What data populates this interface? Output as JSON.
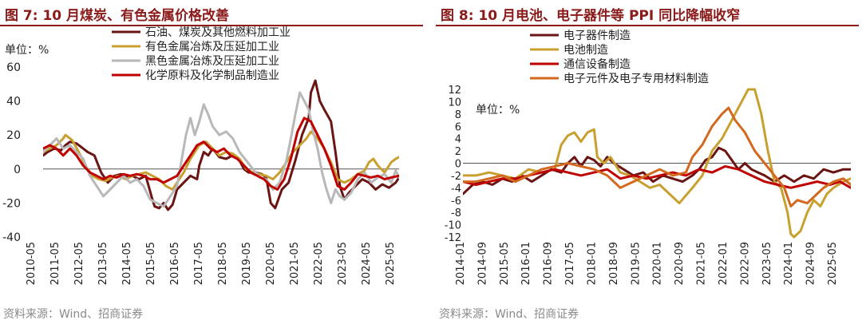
{
  "charts": [
    {
      "figure_label": "图 7:",
      "title": "10 月煤炭、有色金属价格改善",
      "source": "资料来源：Wind、招商证券",
      "chart_data": {
        "type": "line",
        "title": "图 7: 10 月煤炭、有色金属价格改善",
        "unit_label": "单位：%",
        "ylim": [
          -40,
          60
        ],
        "yticks": [
          -40,
          -20,
          0,
          20,
          40,
          60
        ],
        "x_tick_labels": [
          "2010-05",
          "2011-05",
          "2012-05",
          "2013-05",
          "2014-05",
          "2015-05",
          "2016-05",
          "2017-05",
          "2018-05",
          "2019-05",
          "2020-05",
          "2021-05",
          "2022-05",
          "2023-05",
          "2024-05",
          "2025-05"
        ],
        "x_start": 2010.0,
        "x_end": 2025.95,
        "legend_position": "top",
        "series": [
          {
            "name": "石油、煤炭及其他燃料加工业",
            "color": "#6b1414",
            "x": [
              2010.0,
              2010.2,
              2010.5,
              2010.8,
              2011.0,
              2011.2,
              2011.5,
              2011.8,
              2012.0,
              2012.3,
              2012.6,
              2012.9,
              2013.2,
              2013.5,
              2013.8,
              2014.0,
              2014.3,
              2014.6,
              2014.9,
              2015.0,
              2015.2,
              2015.4,
              2015.6,
              2015.8,
              2016.0,
              2016.3,
              2016.6,
              2016.9,
              2017.0,
              2017.2,
              2017.4,
              2017.6,
              2017.9,
              2018.2,
              2018.5,
              2018.8,
              2019.0,
              2019.2,
              2019.5,
              2019.8,
              2020.0,
              2020.2,
              2020.4,
              2020.7,
              2021.0,
              2021.3,
              2021.6,
              2021.9,
              2022.0,
              2022.2,
              2022.4,
              2022.6,
              2022.9,
              2023.1,
              2023.3,
              2023.5,
              2023.7,
              2024.0,
              2024.3,
              2024.6,
              2024.9,
              2025.2,
              2025.5,
              2025.8,
              2025.95
            ],
            "y": [
              8,
              10,
              12,
              11,
              14,
              16,
              15,
              12,
              10,
              8,
              -2,
              -8,
              -4,
              -3,
              -5,
              -4,
              -6,
              -4,
              -18,
              -22,
              -23,
              -20,
              -24,
              -21,
              -12,
              -8,
              -4,
              -6,
              2,
              10,
              8,
              12,
              7,
              6,
              8,
              5,
              0,
              -2,
              -2,
              -3,
              -5,
              -20,
              -23,
              -12,
              -8,
              5,
              20,
              30,
              45,
              52,
              40,
              35,
              28,
              10,
              -10,
              -18,
              -14,
              -10,
              -6,
              -8,
              -12,
              -9,
              -11,
              -8,
              -5
            ]
          },
          {
            "name": "有色金属冶炼及压延加工业",
            "color": "#c8a030",
            "x": [
              2010.0,
              2010.3,
              2010.6,
              2010.9,
              2011.0,
              2011.3,
              2011.6,
              2011.9,
              2012.2,
              2012.5,
              2012.8,
              2013.1,
              2013.4,
              2013.7,
              2014.0,
              2014.3,
              2014.6,
              2014.9,
              2015.2,
              2015.5,
              2015.8,
              2016.0,
              2016.3,
              2016.6,
              2016.9,
              2017.0,
              2017.3,
              2017.6,
              2017.9,
              2018.2,
              2018.5,
              2018.8,
              2019.1,
              2019.4,
              2019.7,
              2020.0,
              2020.3,
              2020.6,
              2020.9,
              2021.2,
              2021.5,
              2021.8,
              2022.0,
              2022.3,
              2022.6,
              2022.9,
              2023.2,
              2023.5,
              2023.8,
              2024.1,
              2024.4,
              2024.6,
              2024.8,
              2025.0,
              2025.3,
              2025.6,
              2025.8,
              2025.95
            ],
            "y": [
              10,
              12,
              14,
              18,
              20,
              17,
              10,
              2,
              -4,
              -6,
              -7,
              -5,
              -4,
              -6,
              -4,
              -3,
              -2,
              -4,
              -6,
              -10,
              -12,
              -8,
              -2,
              6,
              12,
              14,
              16,
              12,
              8,
              10,
              9,
              6,
              0,
              -2,
              -3,
              -4,
              -6,
              -2,
              4,
              10,
              14,
              18,
              22,
              18,
              12,
              4,
              -6,
              -8,
              -6,
              -3,
              -1,
              4,
              6,
              2,
              -2,
              4,
              6,
              7
            ]
          },
          {
            "name": "黑色金属冶炼及压延加工业",
            "color": "#b8b8b8",
            "x": [
              2010.0,
              2010.3,
              2010.6,
              2010.9,
              2011.2,
              2011.5,
              2011.8,
              2012.1,
              2012.4,
              2012.7,
              2013.0,
              2013.3,
              2013.6,
              2013.9,
              2014.2,
              2014.5,
              2014.8,
              2015.1,
              2015.4,
              2015.7,
              2016.0,
              2016.2,
              2016.4,
              2016.6,
              2016.8,
              2017.0,
              2017.2,
              2017.4,
              2017.6,
              2017.9,
              2018.2,
              2018.5,
              2018.8,
              2019.1,
              2019.4,
              2019.7,
              2020.0,
              2020.3,
              2020.6,
              2020.9,
              2021.1,
              2021.3,
              2021.5,
              2021.7,
              2021.9,
              2022.1,
              2022.3,
              2022.5,
              2022.7,
              2022.9,
              2023.1,
              2023.3,
              2023.5,
              2023.8,
              2024.1,
              2024.4,
              2024.7,
              2025.0,
              2025.3,
              2025.6,
              2025.8,
              2025.95
            ],
            "y": [
              10,
              14,
              18,
              12,
              14,
              10,
              6,
              -4,
              -10,
              -16,
              -12,
              -8,
              -4,
              -8,
              -6,
              -10,
              -18,
              -20,
              -22,
              -16,
              -10,
              5,
              20,
              30,
              20,
              28,
              38,
              32,
              25,
              20,
              22,
              18,
              10,
              5,
              0,
              -5,
              -6,
              -12,
              -8,
              5,
              18,
              32,
              45,
              40,
              35,
              22,
              12,
              -2,
              -12,
              -20,
              -12,
              -16,
              -18,
              -14,
              -6,
              -2,
              -8,
              -5,
              -3,
              -8,
              -1,
              -5
            ]
          },
          {
            "name": "化学原料及化学制品制造业",
            "color": "#c00000",
            "x": [
              2010.0,
              2010.3,
              2010.6,
              2010.9,
              2011.2,
              2011.5,
              2011.8,
              2012.1,
              2012.4,
              2012.7,
              2013.0,
              2013.3,
              2013.6,
              2013.9,
              2014.2,
              2014.5,
              2014.8,
              2015.1,
              2015.4,
              2015.7,
              2016.0,
              2016.3,
              2016.6,
              2016.9,
              2017.2,
              2017.5,
              2017.8,
              2018.1,
              2018.4,
              2018.7,
              2019.0,
              2019.3,
              2019.6,
              2019.9,
              2020.2,
              2020.5,
              2020.8,
              2021.1,
              2021.4,
              2021.7,
              2022.0,
              2022.3,
              2022.6,
              2022.9,
              2023.2,
              2023.5,
              2023.8,
              2024.1,
              2024.4,
              2024.7,
              2025.0,
              2025.3,
              2025.6,
              2025.95
            ],
            "y": [
              12,
              14,
              12,
              8,
              12,
              8,
              2,
              -2,
              -4,
              -6,
              -4,
              -5,
              -3,
              -4,
              -3,
              -4,
              -6,
              -6,
              -8,
              -6,
              -4,
              2,
              8,
              14,
              16,
              12,
              10,
              12,
              8,
              6,
              2,
              -2,
              -4,
              -6,
              -10,
              -12,
              -6,
              6,
              22,
              30,
              28,
              20,
              12,
              2,
              -10,
              -12,
              -8,
              -3,
              -4,
              -5,
              -4,
              -6,
              -5,
              -4
            ]
          }
        ]
      }
    },
    {
      "figure_label": "图 8:",
      "title": "10 月电池、电子器件等 PPI 同比降幅收窄",
      "source": "资料来源：Wind、招商证券",
      "chart_data": {
        "type": "line",
        "title": "图 8: 10 月电池、电子器件等 PPI 同比降幅收窄",
        "unit_label": "单位：%",
        "ylim": [
          -12,
          12
        ],
        "yticks": [
          -12,
          -10,
          -8,
          -6,
          -4,
          -2,
          0,
          2,
          4,
          6,
          8,
          10,
          12
        ],
        "x_tick_labels": [
          "2014-01",
          "2014-09",
          "2015-05",
          "2016-01",
          "2016-09",
          "2017-05",
          "2018-01",
          "2018-09",
          "2019-05",
          "2020-01",
          "2020-09",
          "2021-05",
          "2022-01",
          "2022-09",
          "2023-05",
          "2024-01",
          "2024-09",
          "2025-05"
        ],
        "x_start": 2014.0,
        "x_end": 2025.83,
        "legend_position": "top-left",
        "series": [
          {
            "name": "电子器件制造",
            "color": "#6b1414",
            "x": [
              2014.0,
              2014.3,
              2014.6,
              2014.9,
              2015.2,
              2015.5,
              2015.8,
              2016.1,
              2016.4,
              2016.7,
              2017.0,
              2017.2,
              2017.4,
              2017.6,
              2017.8,
              2018.0,
              2018.2,
              2018.4,
              2018.6,
              2018.9,
              2019.2,
              2019.5,
              2019.8,
              2020.1,
              2020.4,
              2020.7,
              2021.0,
              2021.2,
              2021.4,
              2021.6,
              2021.8,
              2022.0,
              2022.2,
              2022.4,
              2022.6,
              2022.8,
              2023.0,
              2023.2,
              2023.5,
              2023.8,
              2024.1,
              2024.4,
              2024.7,
              2025.0,
              2025.3,
              2025.6,
              2025.83
            ],
            "y": [
              -5,
              -3.5,
              -3,
              -3.5,
              -2.5,
              -3,
              -2,
              -3,
              -2,
              -1,
              -1.5,
              0,
              1,
              -0.5,
              1,
              0.5,
              -0.5,
              1,
              0,
              -1,
              -2,
              -1.5,
              -3,
              -2,
              -2.5,
              -3,
              -2,
              -1,
              0.5,
              1,
              2.5,
              2,
              0.5,
              -1,
              0,
              -1,
              -1.5,
              -2,
              -3,
              -2,
              -3,
              -2,
              -2.5,
              -1,
              -1.5,
              -1,
              -1
            ]
          },
          {
            "name": "电池制造",
            "color": "#c8a030",
            "x": [
              2014.0,
              2014.4,
              2014.8,
              2015.2,
              2015.6,
              2016.0,
              2016.4,
              2016.8,
              2017.0,
              2017.2,
              2017.4,
              2017.6,
              2017.8,
              2018.0,
              2018.1,
              2018.3,
              2018.5,
              2018.8,
              2019.1,
              2019.4,
              2019.7,
              2020.0,
              2020.3,
              2020.6,
              2021.0,
              2021.3,
              2021.6,
              2021.9,
              2022.1,
              2022.3,
              2022.5,
              2022.7,
              2022.9,
              2023.1,
              2023.3,
              2023.5,
              2023.7,
              2023.9,
              2024.0,
              2024.1,
              2024.3,
              2024.5,
              2024.7,
              2024.9,
              2025.1,
              2025.3,
              2025.6,
              2025.83
            ],
            "y": [
              -2,
              -2,
              -1.5,
              -2,
              -2.5,
              -1,
              -1.5,
              -1,
              3,
              4.5,
              5,
              3.5,
              5,
              5.5,
              1,
              0,
              1,
              -1.5,
              -2,
              -3,
              -4,
              -3.5,
              -5,
              -6.5,
              -4,
              -2,
              2,
              4,
              6,
              8,
              10,
              12,
              12,
              8,
              2,
              -3,
              -4,
              -8,
              -11.5,
              -12,
              -11,
              -8,
              -6,
              -7,
              -5,
              -4,
              -3,
              -2.5
            ]
          },
          {
            "name": "通信设备制造",
            "color": "#c00000",
            "x": [
              2014.0,
              2014.4,
              2014.8,
              2015.2,
              2015.6,
              2016.0,
              2016.4,
              2016.8,
              2017.2,
              2017.6,
              2018.0,
              2018.4,
              2018.8,
              2019.2,
              2019.6,
              2020.0,
              2020.4,
              2020.8,
              2021.2,
              2021.6,
              2022.0,
              2022.4,
              2022.8,
              2023.2,
              2023.6,
              2024.0,
              2024.4,
              2024.8,
              2025.2,
              2025.5,
              2025.83
            ],
            "y": [
              -3,
              -3.5,
              -3,
              -2.5,
              -2.5,
              -2,
              -1.5,
              -1,
              -1.5,
              -2,
              -1.5,
              -1,
              -2.5,
              -2,
              -2.5,
              -2,
              -1.5,
              -2,
              -1,
              -1.5,
              -0.5,
              -1,
              -2,
              -3,
              -3.5,
              -4,
              -3.5,
              -3,
              -3.5,
              -3,
              -4
            ]
          },
          {
            "name": "电子元件及电子专用材料制造",
            "color": "#d2691e",
            "x": [
              2014.0,
              2014.4,
              2014.8,
              2015.2,
              2015.6,
              2016.0,
              2016.4,
              2016.8,
              2017.2,
              2017.6,
              2018.0,
              2018.4,
              2018.8,
              2019.2,
              2019.6,
              2020.0,
              2020.4,
              2020.8,
              2021.0,
              2021.3,
              2021.6,
              2021.9,
              2022.1,
              2022.3,
              2022.6,
              2022.9,
              2023.2,
              2023.5,
              2023.8,
              2024.0,
              2024.2,
              2024.5,
              2024.8,
              2025.0,
              2025.3,
              2025.6,
              2025.83
            ],
            "y": [
              -3,
              -3,
              -2.5,
              -2,
              -3,
              -2,
              -1,
              -0.5,
              0,
              -0.5,
              -1,
              -2,
              -4,
              -3,
              -2,
              -1,
              -2,
              -1.5,
              1,
              3,
              6,
              8,
              9,
              7,
              5,
              2,
              0,
              -2,
              -4,
              -7,
              -6,
              -6.5,
              -5,
              -4,
              -3,
              -2.5,
              -3.5
            ]
          }
        ]
      }
    }
  ]
}
